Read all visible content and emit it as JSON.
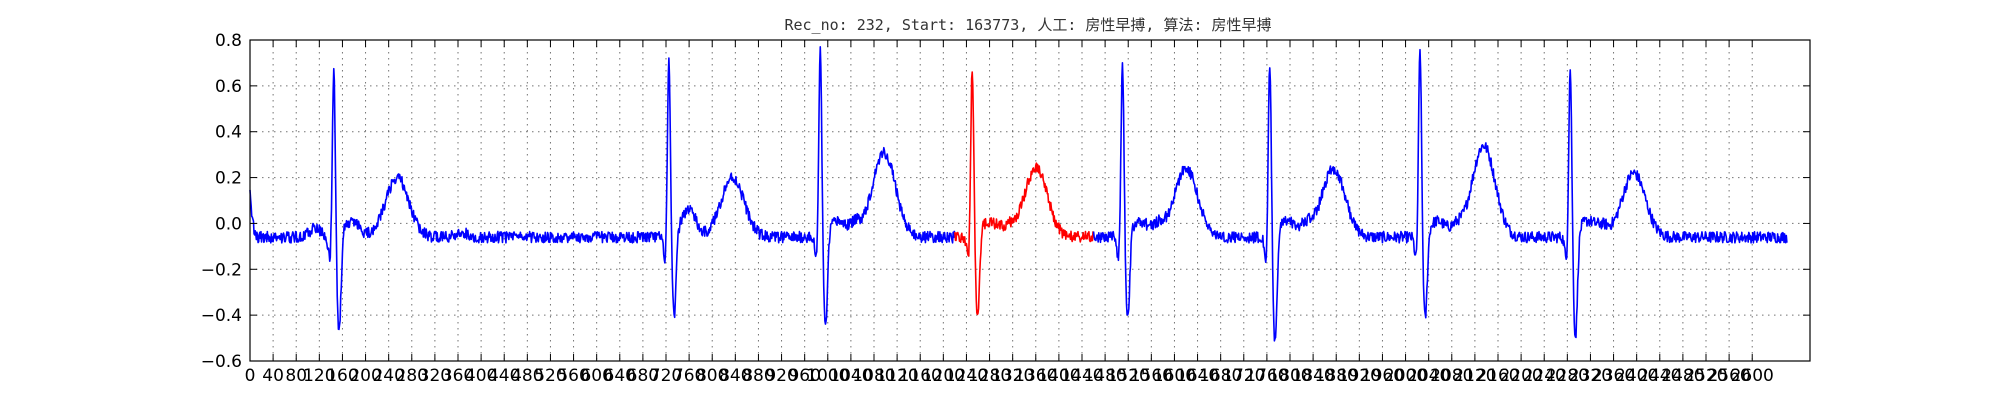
{
  "chart_data": {
    "type": "line",
    "title": "Rec_no: 232, Start: 163773, 人工: 房性早搏, 算法: 房性早搏",
    "xlabel": "",
    "ylabel": "",
    "xlim": [
      0,
      2700
    ],
    "ylim": [
      -0.6,
      0.8
    ],
    "grid": true,
    "yticks": [
      -0.6,
      -0.4,
      -0.2,
      0.0,
      0.2,
      0.4,
      0.6,
      0.8
    ],
    "ytick_labels": [
      "−0.6",
      "−0.4",
      "−0.2",
      "0.0",
      "0.2",
      "0.4",
      "0.6",
      "0.8"
    ],
    "xticks": [
      0,
      40,
      80,
      120,
      160,
      200,
      240,
      280,
      320,
      360,
      400,
      440,
      480,
      520,
      560,
      600,
      640,
      680,
      720,
      760,
      800,
      840,
      880,
      920,
      960,
      1000,
      1040,
      1080,
      1120,
      1160,
      1200,
      1240,
      1280,
      1320,
      1360,
      1400,
      1440,
      1480,
      1520,
      1560,
      1600,
      1640,
      1680,
      1720,
      1760,
      1800,
      1840,
      1880,
      1920,
      1960,
      2000,
      2040,
      2080,
      2120,
      2160,
      2200,
      2240,
      2280,
      2320,
      2360,
      2400,
      2440,
      2480,
      2520,
      2560,
      2600
    ],
    "series": [
      {
        "color": "#0000ff",
        "x_start": 0,
        "x_end": 1220
      },
      {
        "color": "#ff0000",
        "x_start": 1220,
        "x_end": 1460
      },
      {
        "color": "#0000ff",
        "x_start": 1460,
        "x_end": 2660
      }
    ],
    "baseline": -0.06,
    "p_waves": [
      {
        "x": 113,
        "amp": 0.04
      },
      {
        "x": 368,
        "amp": 0.02
      },
      {
        "x": 762,
        "amp": 0.06
      },
      {
        "x": 1048,
        "amp": 0.05
      },
      {
        "x": 1312,
        "amp": 0.04
      },
      {
        "x": 1572,
        "amp": 0.05
      },
      {
        "x": 1828,
        "amp": 0.05
      },
      {
        "x": 2088,
        "amp": 0.04
      },
      {
        "x": 2342,
        "amp": 0.04
      }
    ],
    "beats": [
      {
        "r": 145,
        "r_amp": 0.69,
        "s_amp": -0.43,
        "t_amp": 0.24
      },
      {
        "r": 725,
        "r_amp": 0.72,
        "s_amp": -0.35,
        "t_amp": 0.24
      },
      {
        "r": 987,
        "r_amp": 0.78,
        "s_amp": -0.4,
        "t_amp": 0.35
      },
      {
        "r": 1250,
        "r_amp": 0.7,
        "s_amp": -0.35,
        "t_amp": 0.28
      },
      {
        "r": 1510,
        "r_amp": 0.71,
        "s_amp": -0.36,
        "t_amp": 0.28
      },
      {
        "r": 1765,
        "r_amp": 0.71,
        "s_amp": -0.46,
        "t_amp": 0.28
      },
      {
        "r": 2025,
        "r_amp": 0.78,
        "s_amp": -0.36,
        "t_amp": 0.38
      },
      {
        "r": 2285,
        "r_amp": 0.7,
        "s_amp": -0.44,
        "t_amp": 0.26
      }
    ]
  }
}
